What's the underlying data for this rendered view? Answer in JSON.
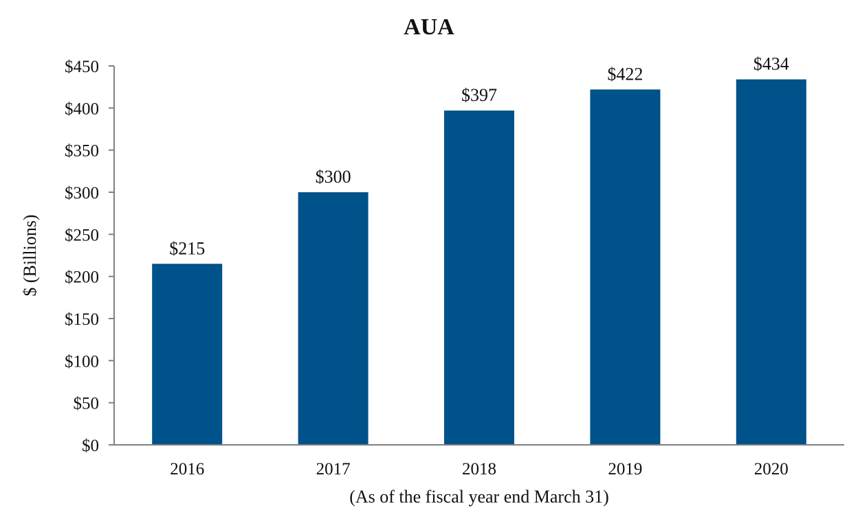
{
  "chart_data": {
    "type": "bar",
    "title": "AUA",
    "xlabel": "(As of the fiscal year end March 31)",
    "ylabel": "$ (Billions)",
    "categories": [
      "2016",
      "2017",
      "2018",
      "2019",
      "2020"
    ],
    "values": [
      215,
      300,
      397,
      422,
      434
    ],
    "data_labels": [
      "$215",
      "$300",
      "$397",
      "$422",
      "$434"
    ],
    "ylim": [
      0,
      450
    ],
    "y_ticks": [
      0,
      50,
      100,
      150,
      200,
      250,
      300,
      350,
      400,
      450
    ],
    "y_tick_labels": [
      "$0",
      "$50",
      "$100",
      "$150",
      "$200",
      "$250",
      "$300",
      "$350",
      "$400",
      "$450"
    ],
    "bar_color": "#00528A",
    "grid": false,
    "legend": "none"
  }
}
